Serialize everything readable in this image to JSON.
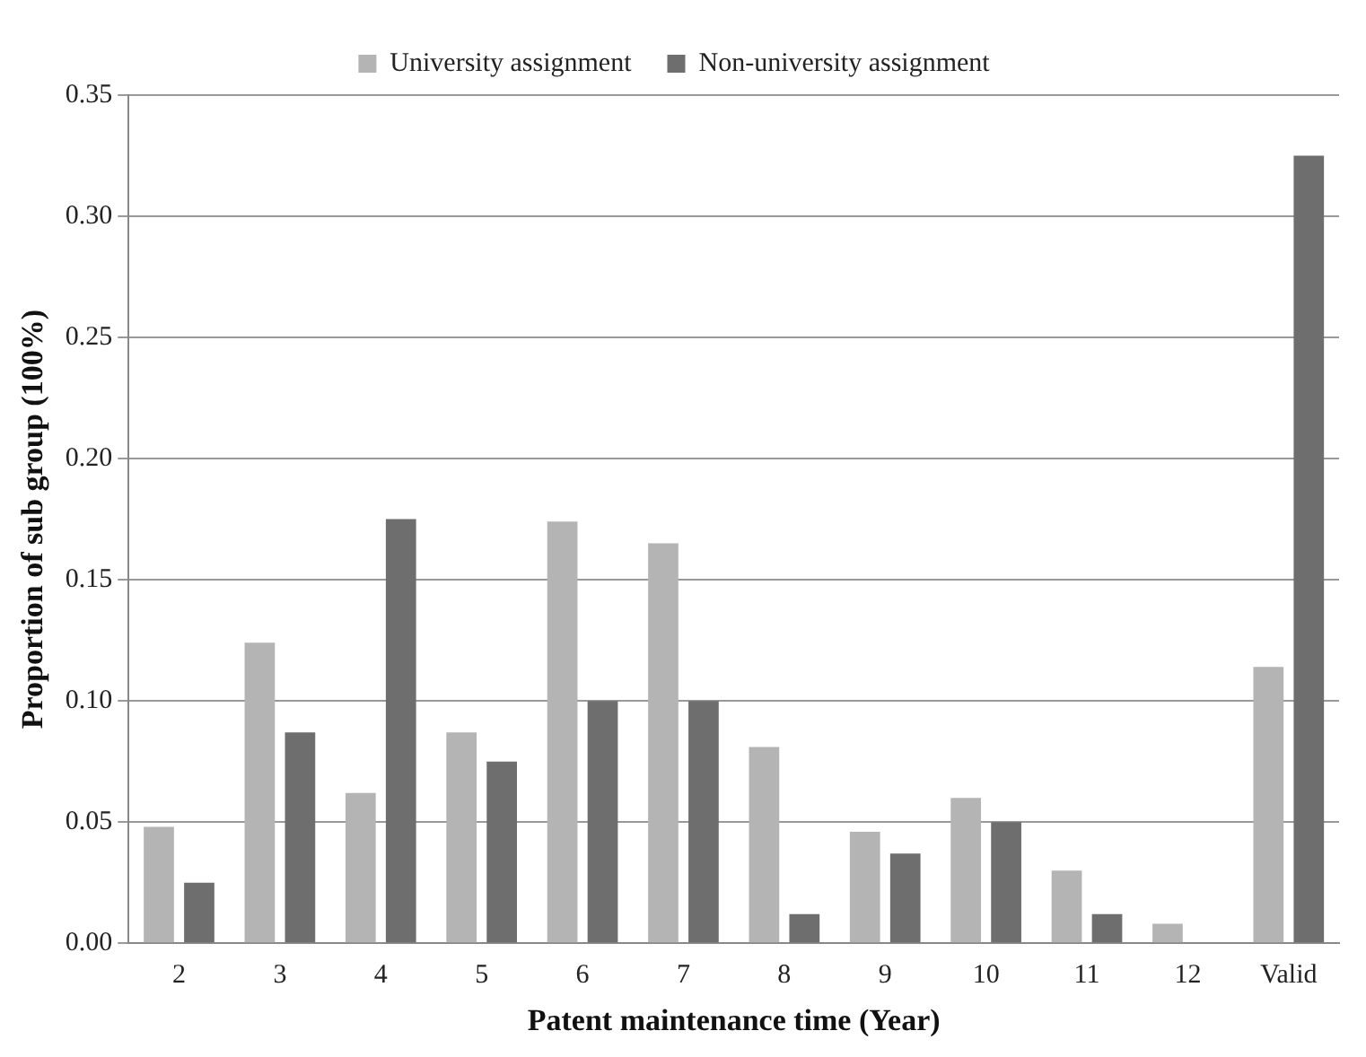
{
  "chart_data": {
    "type": "bar",
    "xlabel": "Patent maintenance time (Year)",
    "ylabel": "Proportion of sub group (100%)",
    "categories": [
      "2",
      "3",
      "4",
      "5",
      "6",
      "7",
      "8",
      "9",
      "10",
      "11",
      "12",
      "Valid"
    ],
    "series": [
      {
        "name": "University assignment",
        "color": "#b4b4b4",
        "values": [
          0.048,
          0.124,
          0.062,
          0.087,
          0.174,
          0.165,
          0.081,
          0.046,
          0.06,
          0.03,
          0.008,
          0.114
        ]
      },
      {
        "name": "Non-university assignment",
        "color": "#6e6e6e",
        "values": [
          0.025,
          0.087,
          0.175,
          0.075,
          0.1,
          0.1,
          0.012,
          0.037,
          0.05,
          0.012,
          0,
          0.325
        ]
      }
    ],
    "ylim": [
      0,
      0.35
    ],
    "yticks": [
      {
        "value": 0,
        "label": "0.00"
      },
      {
        "value": 0.05,
        "label": "0.05"
      },
      {
        "value": 0.1,
        "label": "0.10"
      },
      {
        "value": 0.15,
        "label": "0.15"
      },
      {
        "value": 0.2,
        "label": "0.20"
      },
      {
        "value": 0.25,
        "label": "0.25"
      },
      {
        "value": 0.3,
        "label": "0.30"
      },
      {
        "value": 0.35,
        "label": "0.35"
      }
    ],
    "grid": "y",
    "legend": "top"
  }
}
